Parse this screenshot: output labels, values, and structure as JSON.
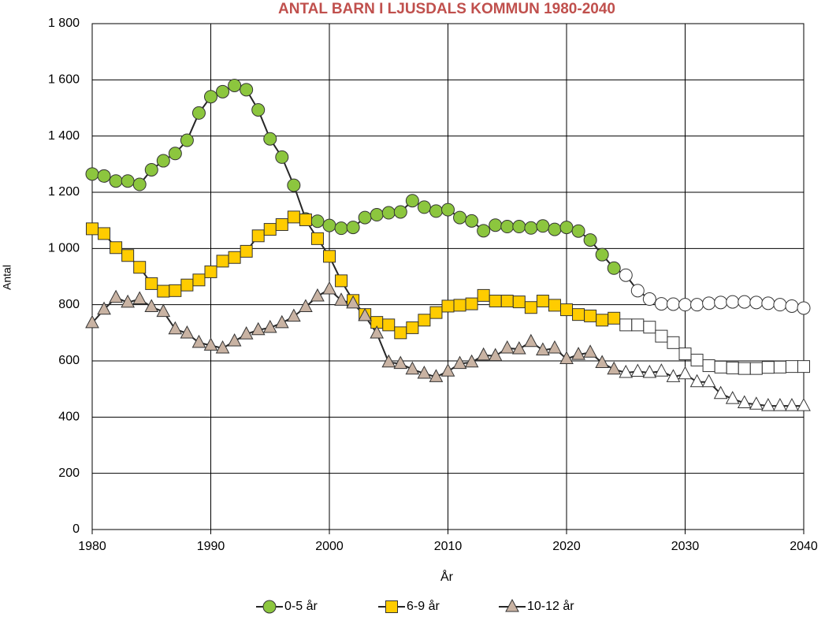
{
  "chart_data": {
    "type": "line",
    "title": "ANTAL BARN I LJUSDALS KOMMUN 1980-2040",
    "title_color": "#c0504d",
    "x_label": "År",
    "y_label": "Antal",
    "x": [
      1980,
      1981,
      1982,
      1983,
      1984,
      1985,
      1986,
      1987,
      1988,
      1989,
      1990,
      1991,
      1992,
      1993,
      1994,
      1995,
      1996,
      1997,
      1998,
      1999,
      2000,
      2001,
      2002,
      2003,
      2004,
      2005,
      2006,
      2007,
      2008,
      2009,
      2010,
      2011,
      2012,
      2013,
      2014,
      2015,
      2016,
      2017,
      2018,
      2019,
      2020,
      2021,
      2022,
      2023,
      2024,
      2025,
      2026,
      2027,
      2028,
      2029,
      2030,
      2031,
      2032,
      2033,
      2034,
      2035,
      2036,
      2037,
      2038,
      2039,
      2040
    ],
    "xlim": [
      1980,
      2040
    ],
    "xticks": [
      1980,
      1990,
      2000,
      2010,
      2020,
      2030,
      2040
    ],
    "ylim": [
      0,
      1800
    ],
    "yticks": [
      0,
      200,
      400,
      600,
      800,
      {
        "value": 1000,
        "label": "1 000"
      },
      {
        "value": 1200,
        "label": "1 200"
      },
      {
        "value": 1400,
        "label": "1 400"
      },
      {
        "value": 1600,
        "label": "1 600"
      },
      {
        "value": 1800,
        "label": "1 800"
      }
    ],
    "grid": true,
    "legend": "bottom",
    "line_color": "#262626",
    "projection": {
      "from": 2025,
      "color": "#ffffff"
    },
    "series": [
      {
        "name": "0-5 år",
        "color": "#8cc63e",
        "marker": "circle",
        "values": [
          1265,
          1258,
          1240,
          1240,
          1228,
          1280,
          1312,
          1338,
          1385,
          1482,
          1540,
          1558,
          1580,
          1565,
          1493,
          1390,
          1325,
          1225,
          1105,
          1097,
          1082,
          1072,
          1075,
          1110,
          1120,
          1127,
          1130,
          1170,
          1147,
          1133,
          1138,
          1110,
          1098,
          1063,
          1083,
          1078,
          1078,
          1073,
          1080,
          1068,
          1075,
          1062,
          1030,
          978,
          930,
          905,
          850,
          820,
          803,
          802,
          800,
          800,
          805,
          808,
          810,
          810,
          808,
          805,
          800,
          795,
          788
        ]
      },
      {
        "name": "6-9 år",
        "color": "#ffcc00",
        "marker": "square",
        "values": [
          1070,
          1053,
          1003,
          975,
          933,
          875,
          848,
          850,
          870,
          888,
          917,
          955,
          968,
          990,
          1045,
          1068,
          1085,
          1112,
          1102,
          1035,
          972,
          885,
          815,
          765,
          737,
          728,
          700,
          718,
          745,
          772,
          795,
          798,
          803,
          833,
          813,
          813,
          810,
          790,
          813,
          798,
          782,
          765,
          760,
          745,
          752,
          728,
          728,
          720,
          688,
          665,
          625,
          603,
          583,
          578,
          575,
          573,
          573,
          577,
          578,
          580,
          580
        ]
      },
      {
        "name": "10-12 år",
        "color": "#c9b3a3",
        "marker": "triangle",
        "values": [
          735,
          783,
          825,
          808,
          820,
          792,
          775,
          713,
          698,
          665,
          655,
          645,
          670,
          695,
          710,
          718,
          735,
          758,
          792,
          830,
          855,
          815,
          805,
          760,
          698,
          595,
          590,
          570,
          555,
          543,
          563,
          590,
          595,
          620,
          618,
          645,
          642,
          668,
          638,
          645,
          607,
          622,
          630,
          593,
          570,
          558,
          562,
          558,
          563,
          543,
          553,
          525,
          525,
          483,
          465,
          450,
          445,
          440,
          440,
          440,
          440
        ]
      }
    ]
  }
}
